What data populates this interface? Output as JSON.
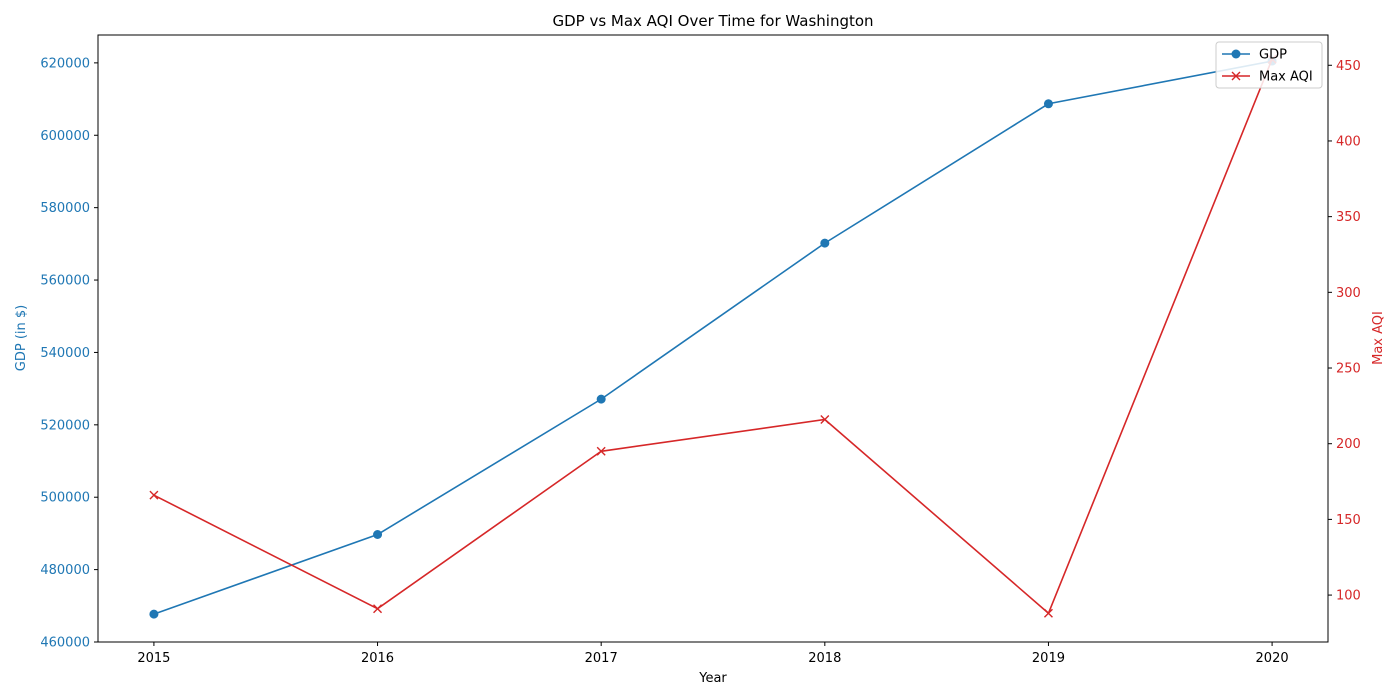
{
  "chart_data": {
    "type": "line",
    "title": "GDP vs Max AQI Over Time for Washington",
    "xlabel": "Year",
    "ylabel_left": "GDP (in $)",
    "ylabel_right": "Max AQI",
    "x": [
      2015,
      2016,
      2017,
      2018,
      2019,
      2020
    ],
    "x_tick_labels": [
      "2015",
      "2016",
      "2017",
      "2018",
      "2019",
      "2020"
    ],
    "y_left_ticks": [
      "460000",
      "480000",
      "500000",
      "520000",
      "540000",
      "560000",
      "580000",
      "600000",
      "620000"
    ],
    "y_right_ticks": [
      "100",
      "150",
      "200",
      "250",
      "300",
      "350",
      "400",
      "450"
    ],
    "ylim_left": [
      460000,
      627700
    ],
    "ylim_right": [
      69,
      470
    ],
    "grid": false,
    "legend_position": "top-right",
    "series": [
      {
        "name": "GDP",
        "axis": "left",
        "marker": "circle",
        "color": "#1f77b4",
        "values": [
          467700,
          489700,
          527100,
          570200,
          608700,
          620500
        ]
      },
      {
        "name": "Max AQI",
        "axis": "right",
        "marker": "x",
        "color": "#d62728",
        "values": [
          166,
          91,
          195,
          216,
          88,
          454
        ]
      }
    ]
  }
}
